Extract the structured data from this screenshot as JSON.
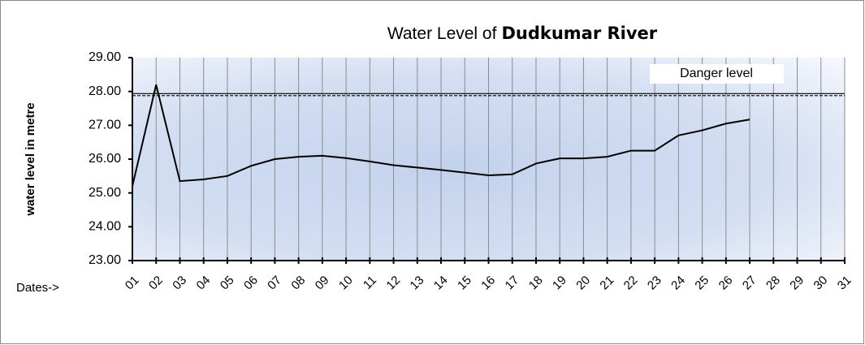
{
  "chart_data": {
    "type": "line",
    "title": "Water Level of",
    "title_emphasis": "Dudkumar River",
    "y_label": "water level in metre",
    "x_label": "Dates->",
    "categories": [
      "01",
      "02",
      "03",
      "04",
      "05",
      "06",
      "07",
      "08",
      "09",
      "10",
      "11",
      "12",
      "13",
      "14",
      "15",
      "16",
      "17",
      "18",
      "19",
      "20",
      "21",
      "22",
      "23",
      "24",
      "25",
      "26",
      "27",
      "28",
      "29",
      "30",
      "31"
    ],
    "series": [
      {
        "color": "#000000",
        "values": [
          25.2,
          28.2,
          25.35,
          25.4,
          25.5,
          25.8,
          26.0,
          26.07,
          26.1,
          26.03,
          25.93,
          25.82,
          25.75,
          25.68,
          25.6,
          25.52,
          25.55,
          25.87,
          26.02,
          26.02,
          26.07,
          26.25,
          26.25,
          26.7,
          26.85,
          27.05,
          27.17,
          null,
          null,
          null,
          null
        ]
      }
    ],
    "danger_level": {
      "label": "Danger level",
      "value": 27.9
    },
    "ylim": [
      23,
      29
    ],
    "yticks": [
      {
        "value": 23,
        "label": "23.00"
      },
      {
        "value": 24,
        "label": "24.00"
      },
      {
        "value": 25,
        "label": "25.00"
      },
      {
        "value": 26,
        "label": "26.00"
      },
      {
        "value": 27,
        "label": "27.00"
      },
      {
        "value": 28,
        "label": "28.00"
      },
      {
        "value": 29,
        "label": "29.00"
      }
    ],
    "xgrid": true
  }
}
